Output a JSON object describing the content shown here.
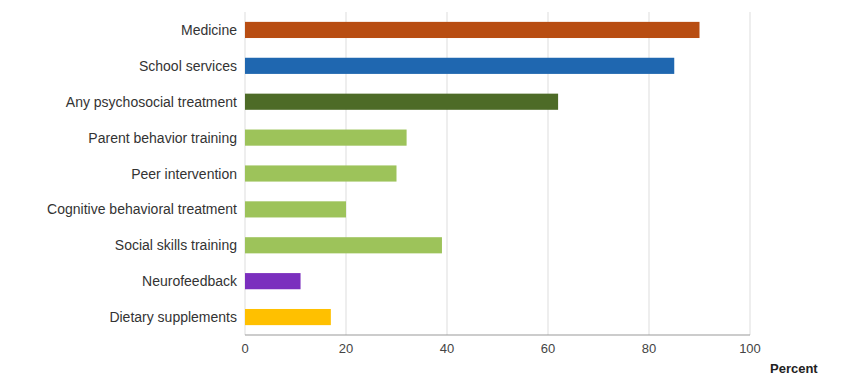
{
  "chart_data": {
    "type": "bar",
    "orientation": "horizontal",
    "categories": [
      "Dietary supplements",
      "Neurofeedback",
      "Social skills training",
      "Cognitive behavioral treatment",
      "Peer intervention",
      "Parent behavior training",
      "Any psychosocial treatment",
      "School services",
      "Medicine"
    ],
    "values": [
      17,
      11,
      39,
      20,
      30,
      32,
      62,
      85,
      90
    ],
    "colors": [
      "#FFC000",
      "#7B2FBE",
      "#9DC35A",
      "#9DC35A",
      "#9DC35A",
      "#9DC35A",
      "#4D6B27",
      "#1F67B0",
      "#B84D12"
    ],
    "xlabel": "Percent",
    "xlim": [
      0,
      100
    ],
    "xticks": [
      0,
      20,
      40,
      60,
      80,
      100
    ],
    "grid": true
  }
}
